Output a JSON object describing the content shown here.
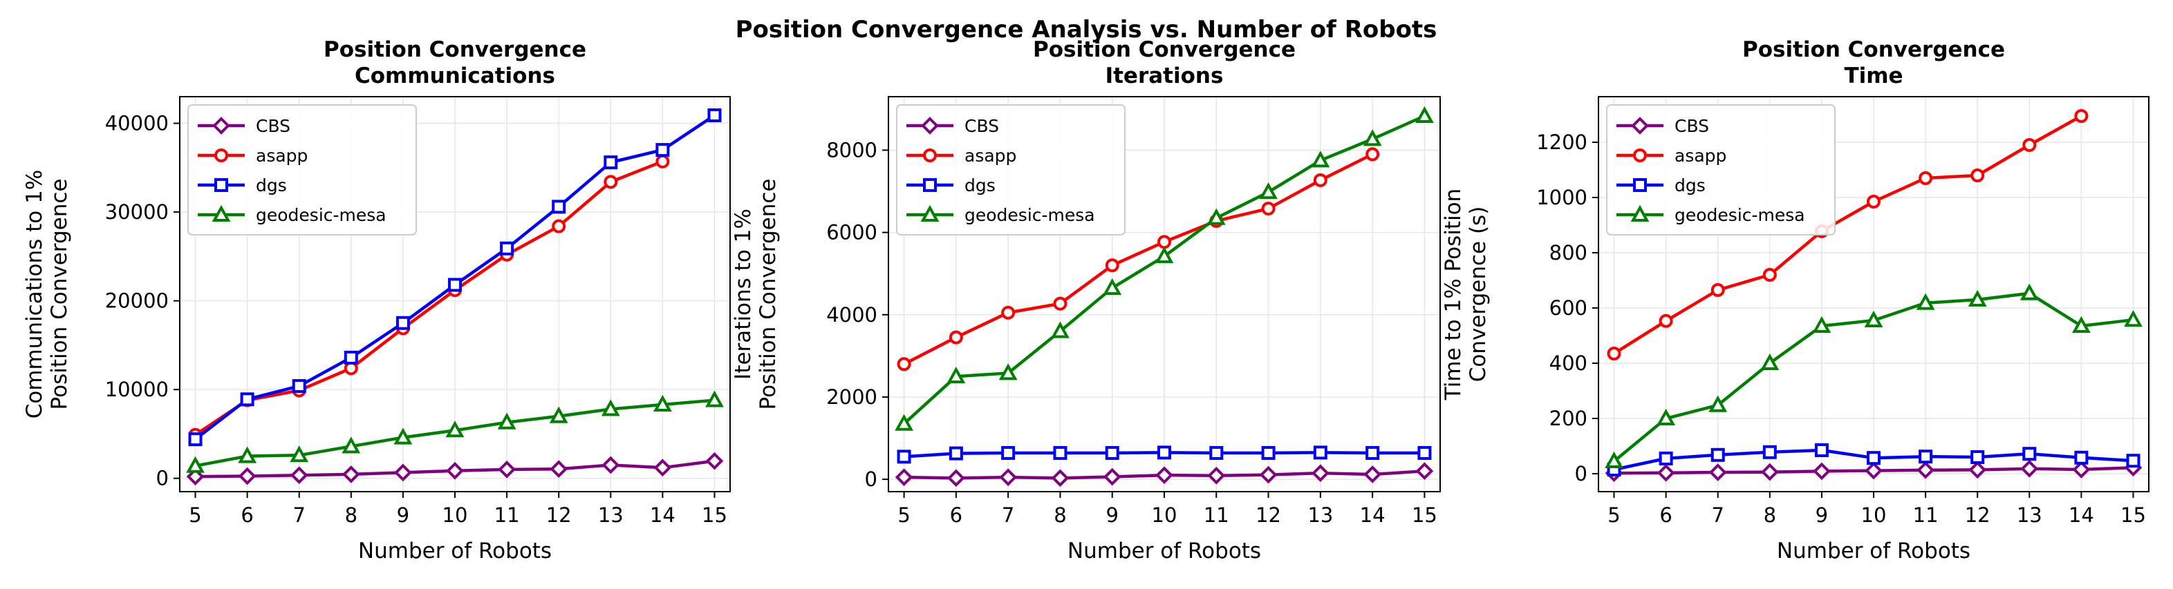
{
  "suptitle": "Position Convergence Analysis vs. Number of Robots",
  "chart_data": [
    {
      "type": "line",
      "title": [
        "Position Convergence",
        "Communications"
      ],
      "xlabel": "Number of Robots",
      "ylabel": [
        "Communications to 1%",
        "Position Convergence"
      ],
      "x": [
        5,
        6,
        7,
        8,
        9,
        10,
        11,
        12,
        13,
        14,
        15
      ],
      "xlim": [
        4.7,
        15.3
      ],
      "ylim": [
        -1500,
        43000
      ],
      "yticks": [
        0,
        10000,
        20000,
        30000,
        40000
      ],
      "grid": true,
      "legend": "top-left",
      "series": [
        {
          "name": "CBS",
          "color": "#800080",
          "marker": "diamond",
          "values": [
            200,
            250,
            350,
            450,
            650,
            850,
            1000,
            1050,
            1500,
            1200,
            1950
          ]
        },
        {
          "name": "asapp",
          "color": "#ff0000",
          "marker": "circle",
          "values": [
            4900,
            8800,
            9900,
            12400,
            16900,
            21200,
            25200,
            28400,
            33400,
            35700,
            null
          ]
        },
        {
          "name": "dgs",
          "color": "#0000ff",
          "marker": "square",
          "values": [
            4400,
            8900,
            10400,
            13600,
            17500,
            21800,
            25900,
            30600,
            35600,
            37000,
            40900
          ]
        },
        {
          "name": "geodesic-mesa",
          "color": "#008000",
          "marker": "triangle",
          "values": [
            1400,
            2500,
            2600,
            3600,
            4600,
            5400,
            6300,
            7000,
            7800,
            8300,
            8800
          ]
        }
      ]
    },
    {
      "type": "line",
      "title": [
        "Position Convergence",
        "Iterations"
      ],
      "xlabel": "Number of Robots",
      "ylabel": [
        "Iterations to 1%",
        "Position Convergence"
      ],
      "x": [
        5,
        6,
        7,
        8,
        9,
        10,
        11,
        12,
        13,
        14,
        15
      ],
      "xlim": [
        4.7,
        15.3
      ],
      "ylim": [
        -300,
        9300
      ],
      "yticks": [
        0,
        2000,
        4000,
        6000,
        8000
      ],
      "grid": true,
      "legend": "top-left",
      "series": [
        {
          "name": "CBS",
          "color": "#800080",
          "marker": "diamond",
          "values": [
            50,
            30,
            50,
            30,
            60,
            100,
            90,
            110,
            150,
            120,
            200
          ]
        },
        {
          "name": "asapp",
          "color": "#ff0000",
          "marker": "circle",
          "values": [
            2800,
            3450,
            4050,
            4270,
            5200,
            5770,
            6280,
            6580,
            7270,
            7900,
            null
          ]
        },
        {
          "name": "dgs",
          "color": "#0000ff",
          "marker": "square",
          "values": [
            550,
            630,
            640,
            640,
            640,
            650,
            640,
            640,
            650,
            640,
            640
          ]
        },
        {
          "name": "geodesic-mesa",
          "color": "#008000",
          "marker": "triangle",
          "values": [
            1350,
            2500,
            2580,
            3600,
            4650,
            5420,
            6350,
            6980,
            7750,
            8270,
            8830
          ]
        }
      ]
    },
    {
      "type": "line",
      "title": [
        "Position Convergence",
        "Time"
      ],
      "xlabel": "Number of Robots",
      "ylabel": [
        "Time to 1% Position",
        "Convergence (s)"
      ],
      "x": [
        5,
        6,
        7,
        8,
        9,
        10,
        11,
        12,
        13,
        14,
        15
      ],
      "xlim": [
        4.7,
        15.3
      ],
      "ylim": [
        -65,
        1365
      ],
      "yticks": [
        0,
        200,
        400,
        600,
        800,
        1000,
        1200
      ],
      "grid": true,
      "legend": "top-left",
      "series": [
        {
          "name": "CBS",
          "color": "#800080",
          "marker": "diamond",
          "values": [
            2,
            3,
            5,
            6,
            9,
            11,
            13,
            14,
            18,
            15,
            22
          ]
        },
        {
          "name": "asapp",
          "color": "#ff0000",
          "marker": "circle",
          "values": [
            435,
            553,
            665,
            720,
            878,
            985,
            1070,
            1080,
            1190,
            1295,
            null
          ]
        },
        {
          "name": "dgs",
          "color": "#0000ff",
          "marker": "square",
          "values": [
            15,
            55,
            68,
            78,
            85,
            57,
            62,
            60,
            72,
            58,
            47
          ]
        },
        {
          "name": "geodesic-mesa",
          "color": "#008000",
          "marker": "triangle",
          "values": [
            45,
            200,
            248,
            400,
            535,
            555,
            618,
            630,
            653,
            535,
            557
          ]
        }
      ]
    }
  ]
}
